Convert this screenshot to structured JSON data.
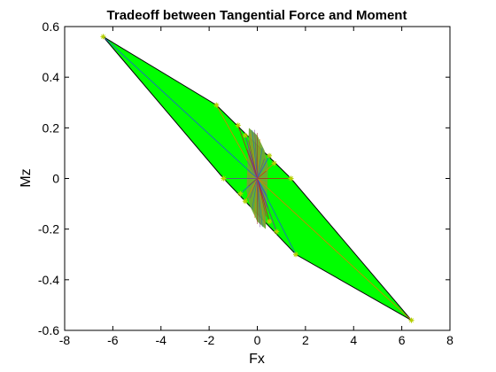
{
  "chart_data": {
    "type": "scatter",
    "title": "Tradeoff between Tangential Force and Moment",
    "xlabel": "Fx",
    "ylabel": "Mz",
    "xlim": [
      -8,
      8
    ],
    "ylim": [
      -0.6,
      0.6
    ],
    "xticks": [
      -8,
      -6,
      -4,
      -2,
      0,
      2,
      4,
      6,
      8
    ],
    "yticks": [
      -0.6,
      -0.4,
      -0.2,
      0,
      0.2,
      0.4,
      0.6
    ],
    "xtick_labels": [
      "-8",
      "-6",
      "-4",
      "-2",
      "0",
      "2",
      "4",
      "6",
      "8"
    ],
    "ytick_labels": [
      "-0.6",
      "-0.4",
      "-0.2",
      "0",
      "0.2",
      "0.4",
      "0.6"
    ],
    "grid": false,
    "colors": {
      "hull_fill": "#00ff00",
      "hull_edge": "#000000",
      "inner_fill": "#6fa832",
      "marker": "#b5d000",
      "ray_blue": "#1f5fd0",
      "ray_orange": "#e07b00",
      "ray_red": "#b02020",
      "ray_purple": "#7030a0"
    },
    "hull": [
      {
        "x": -6.4,
        "y": 0.56
      },
      {
        "x": -1.7,
        "y": 0.29
      },
      {
        "x": 1.4,
        "y": 0.0
      },
      {
        "x": 6.4,
        "y": -0.56
      },
      {
        "x": 1.6,
        "y": -0.3
      },
      {
        "x": -1.4,
        "y": 0.0
      }
    ],
    "points": [
      {
        "x": -6.4,
        "y": 0.56
      },
      {
        "x": -1.7,
        "y": 0.29
      },
      {
        "x": -0.8,
        "y": 0.21
      },
      {
        "x": -0.5,
        "y": 0.17
      },
      {
        "x": 0.5,
        "y": 0.09
      },
      {
        "x": 0.7,
        "y": 0.06
      },
      {
        "x": 1.4,
        "y": 0.0
      },
      {
        "x": -1.4,
        "y": 0.0
      },
      {
        "x": -0.7,
        "y": -0.06
      },
      {
        "x": -0.5,
        "y": -0.09
      },
      {
        "x": 0.5,
        "y": -0.17
      },
      {
        "x": 0.8,
        "y": -0.21
      },
      {
        "x": 1.6,
        "y": -0.3
      },
      {
        "x": 6.4,
        "y": -0.56
      }
    ]
  }
}
